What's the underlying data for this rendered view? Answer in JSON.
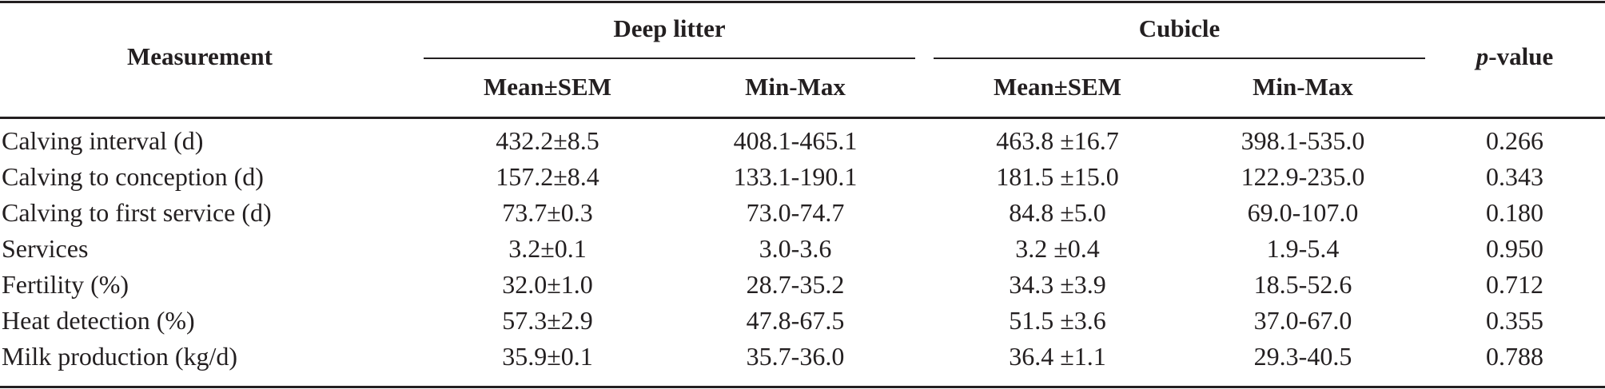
{
  "table": {
    "headers": {
      "measurement": "Measurement",
      "group1": "Deep litter",
      "group2": "Cubicle",
      "sub1a": "Mean±SEM",
      "sub1b": "Min-Max",
      "sub2a": "Mean±SEM",
      "sub2b": "Min-Max",
      "p_italic": "p",
      "p_rest": "-value"
    },
    "rows": [
      {
        "label": "Calving interval (d)",
        "dl_mean": "432.2±8.5",
        "dl_range": "408.1-465.1",
        "cu_mean": "463.8 ±16.7",
        "cu_range": "398.1-535.0",
        "p": "0.266"
      },
      {
        "label": "Calving to conception (d)",
        "dl_mean": "157.2±8.4",
        "dl_range": "133.1-190.1",
        "cu_mean": "181.5 ±15.0",
        "cu_range": "122.9-235.0",
        "p": "0.343"
      },
      {
        "label": "Calving to first service (d)",
        "dl_mean": "73.7±0.3",
        "dl_range": "73.0-74.7",
        "cu_mean": "84.8 ±5.0",
        "cu_range": "69.0-107.0",
        "p": "0.180"
      },
      {
        "label": "Services",
        "dl_mean": "3.2±0.1",
        "dl_range": "3.0-3.6",
        "cu_mean": "3.2 ±0.4",
        "cu_range": "1.9-5.4",
        "p": "0.950"
      },
      {
        "label": "Fertility (%)",
        "dl_mean": "32.0±1.0",
        "dl_range": "28.7-35.2",
        "cu_mean": "34.3 ±3.9",
        "cu_range": "18.5-52.6",
        "p": "0.712"
      },
      {
        "label": "Heat detection (%)",
        "dl_mean": "57.3±2.9",
        "dl_range": "47.8-67.5",
        "cu_mean": "51.5 ±3.6",
        "cu_range": "37.0-67.0",
        "p": "0.355"
      },
      {
        "label": "Milk production (kg/d)",
        "dl_mean": "35.9±0.1",
        "dl_range": "35.7-36.0",
        "cu_mean": "36.4 ±1.1",
        "cu_range": "29.3-40.5",
        "p": "0.788"
      }
    ]
  }
}
